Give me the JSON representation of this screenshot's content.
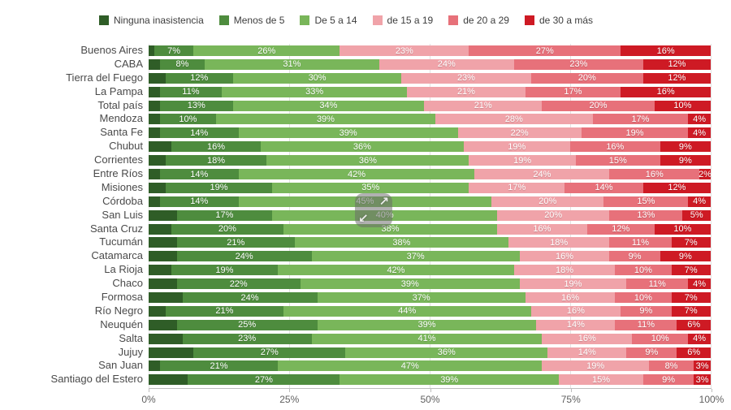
{
  "chart_data": {
    "type": "bar",
    "orientation": "horizontal",
    "stacked": true,
    "unit": "%",
    "xlim": [
      0,
      100
    ],
    "x_ticks": [
      "0%",
      "25%",
      "50%",
      "75%",
      "100%"
    ],
    "x_tick_values": [
      0,
      25,
      50,
      75,
      100
    ],
    "grid": "vertical",
    "legend_position": "top",
    "categories": [
      "Buenos Aires",
      "CABA",
      "Tierra del Fuego",
      "La Pampa",
      "Total país",
      "Mendoza",
      "Santa Fe",
      "Chubut",
      "Corrientes",
      "Entre Ríos",
      "Misiones",
      "Córdoba",
      "San Luis",
      "Santa Cruz",
      "Tucumán",
      "Catamarca",
      "La Rioja",
      "Chaco",
      "Formosa",
      "Río Negro",
      "Neuquén",
      "Salta",
      "Jujuy",
      "San Juan",
      "Santiago del Estero"
    ],
    "series": [
      {
        "name": "Ninguna inasistencia",
        "color": "#2f5d27",
        "labels_visible": false,
        "values": [
          1,
          2,
          3,
          2,
          2,
          2,
          2,
          4,
          3,
          2,
          3,
          2,
          5,
          4,
          5,
          5,
          4,
          5,
          6,
          3,
          5,
          6,
          8,
          2,
          7
        ]
      },
      {
        "name": "Menos de 5",
        "color": "#4e8c3e",
        "labels_visible": true,
        "values": [
          7,
          8,
          12,
          11,
          13,
          10,
          14,
          16,
          18,
          14,
          19,
          14,
          17,
          20,
          21,
          24,
          19,
          22,
          24,
          21,
          25,
          23,
          27,
          21,
          27
        ]
      },
      {
        "name": "De 5 a 14",
        "color": "#79b65a",
        "labels_visible": true,
        "values": [
          26,
          31,
          30,
          33,
          34,
          39,
          39,
          36,
          36,
          42,
          35,
          45,
          40,
          38,
          38,
          37,
          42,
          39,
          37,
          44,
          39,
          41,
          36,
          47,
          39
        ]
      },
      {
        "name": "de 15 a 19",
        "color": "#f0a3a9",
        "labels_visible": true,
        "values": [
          23,
          24,
          23,
          21,
          21,
          28,
          22,
          19,
          19,
          24,
          17,
          20,
          20,
          16,
          18,
          16,
          18,
          19,
          16,
          16,
          14,
          16,
          14,
          19,
          15
        ]
      },
      {
        "name": "de 20 a 29",
        "color": "#e7717a",
        "labels_visible": true,
        "values": [
          27,
          23,
          20,
          17,
          20,
          17,
          19,
          16,
          15,
          16,
          14,
          15,
          13,
          12,
          11,
          9,
          10,
          11,
          10,
          9,
          11,
          10,
          9,
          8,
          9
        ]
      },
      {
        "name": "de 30 a más",
        "color": "#ce1a24",
        "labels_visible": true,
        "values": [
          16,
          12,
          12,
          16,
          10,
          4,
          4,
          9,
          9,
          2,
          12,
          4,
          5,
          10,
          7,
          9,
          7,
          4,
          7,
          7,
          6,
          4,
          6,
          3,
          3
        ]
      }
    ]
  },
  "overlay": {
    "type": "resize-cursor",
    "arrow_up_right": "↗",
    "arrow_down_left": "↙"
  }
}
